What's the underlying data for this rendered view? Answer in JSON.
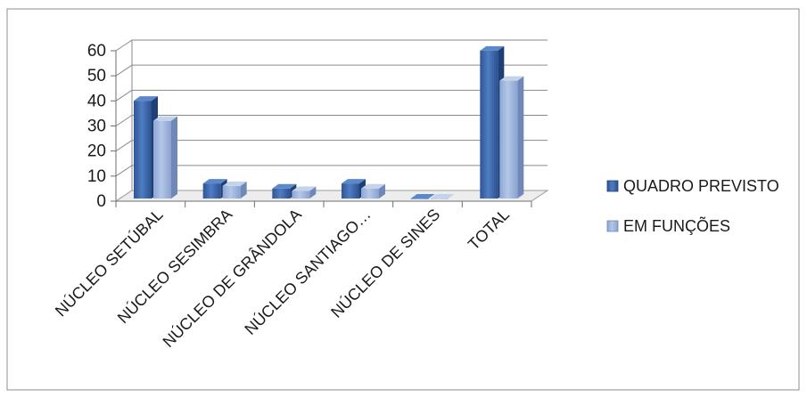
{
  "chart_data": {
    "type": "bar",
    "title": "",
    "xlabel": "",
    "ylabel": "",
    "ylim": [
      0,
      60
    ],
    "yticks": [
      0,
      10,
      20,
      30,
      40,
      50,
      60
    ],
    "grid": true,
    "legend_position": "right",
    "categories": [
      "NÚCLEO SETÚBAL",
      "NÚCLEO SESIMBRA",
      "NÚCLEO DE GRÂNDOLA",
      "NÚCLEO SANTIAGO…",
      "NÚCLEO DE SINES",
      "TOTAL"
    ],
    "series": [
      {
        "name": "QUADRO PREVISTO",
        "values": [
          39,
          6,
          4,
          6,
          0,
          59
        ],
        "color": "#3F6BAE"
      },
      {
        "name": "EM FUNÇÕES",
        "values": [
          31,
          5,
          3,
          4,
          0,
          47
        ],
        "color": "#9DB4DD"
      }
    ]
  }
}
